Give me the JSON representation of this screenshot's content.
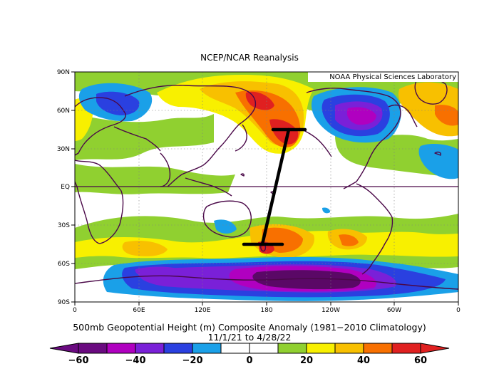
{
  "header": {
    "title": "NCEP/NCAR Reanalysis"
  },
  "credit": "NOAA Physical Sciences Laboratory",
  "axes": {
    "lat_labels": [
      "90N",
      "60N",
      "30N",
      "EQ",
      "30S",
      "60S",
      "90S"
    ],
    "lon_labels": [
      "0",
      "60E",
      "120E",
      "180",
      "120W",
      "60W",
      "0"
    ]
  },
  "caption": {
    "line1": "500mb Geopotential Height (m) Composite Anomaly (1981−2010 Climatology)",
    "line2": "11/1/21   to 4/28/22"
  },
  "colorbar": {
    "labels": [
      "−60",
      "−40",
      "−20",
      "0",
      "20",
      "40",
      "60"
    ],
    "colors": [
      "#6a0a80",
      "#b000c0",
      "#7a20d8",
      "#2a40e0",
      "#1aa0e8",
      "#ffffff",
      "#ffffff",
      "#90d030",
      "#f8f000",
      "#f8c000",
      "#f87000",
      "#e02020"
    ]
  },
  "palette": {
    "deep_purple": "#5a0866",
    "magenta": "#b000c0",
    "violet": "#7a20d8",
    "blue": "#2a40e0",
    "light_blue": "#1aa0e8",
    "green": "#90d030",
    "yellow": "#f8f000",
    "gold": "#f8c000",
    "orange": "#f87000",
    "red": "#e02020",
    "coast": "#4a0848"
  }
}
